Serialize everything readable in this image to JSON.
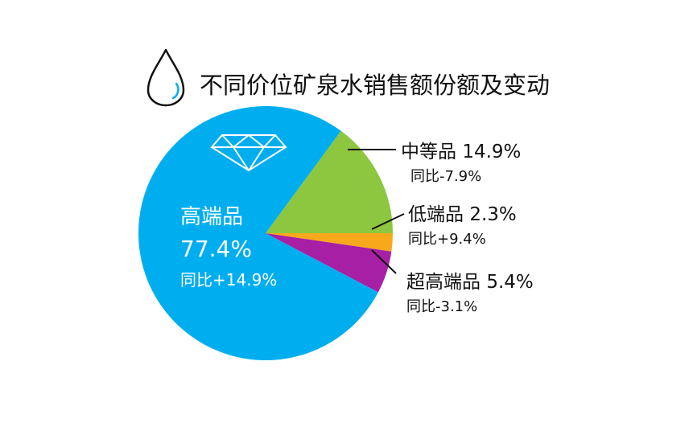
{
  "title": "不同价位矿泉水销售额份额及变动",
  "icons": {
    "title_icon": "water-drop-icon",
    "highlight_icon": "diamond-icon"
  },
  "chart_data": {
    "type": "pie",
    "title": "不同价位矿泉水销售额份额及变动",
    "unit": "%",
    "slices": [
      {
        "name": "高端品",
        "value": 77.4,
        "share_label": "77.4%",
        "yoy_label": "同比+14.9%",
        "color": "#00AEEF"
      },
      {
        "name": "中等品",
        "value": 14.9,
        "share_label": "14.9%",
        "yoy_label": "同比-7.9%",
        "color": "#8DC63F"
      },
      {
        "name": "低端品",
        "value": 2.3,
        "share_label": "2.3%",
        "yoy_label": "同比+9.4%",
        "color": "#F7A81B"
      },
      {
        "name": "超高端品",
        "value": 5.4,
        "share_label": "5.4%",
        "yoy_label": "同比-3.1%",
        "color": "#A71FA5"
      }
    ]
  }
}
